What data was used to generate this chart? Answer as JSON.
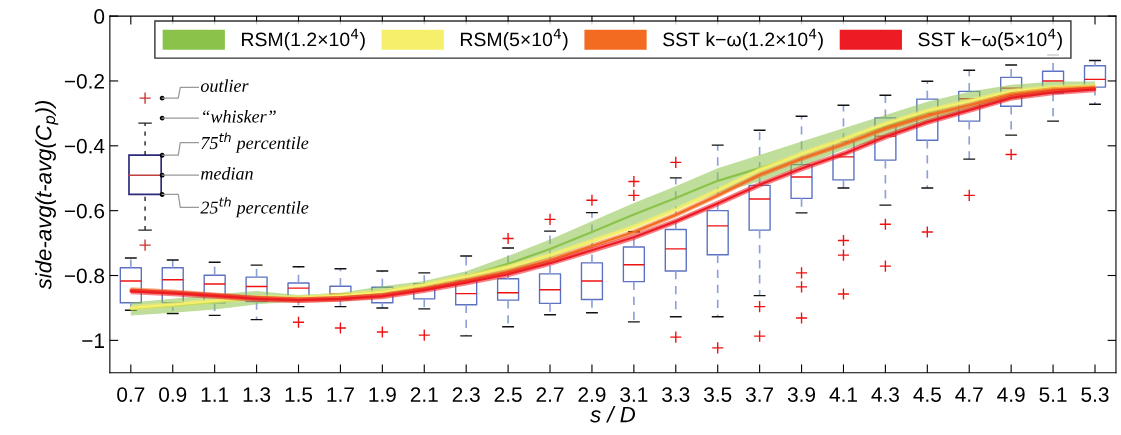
{
  "chart_data": {
    "type": "box",
    "xlabel": "s / D",
    "ylabel": "side-avg(t-avg(C$_{p}$))",
    "categories": [
      "0.7",
      "0.9",
      "1.1",
      "1.3",
      "1.5",
      "1.7",
      "1.9",
      "2.1",
      "2.3",
      "2.5",
      "2.7",
      "2.9",
      "3.1",
      "3.3",
      "3.5",
      "3.7",
      "3.9",
      "4.1",
      "4.3",
      "4.5",
      "4.7",
      "4.9",
      "5.1",
      "5.3"
    ],
    "ylim": [
      -1.1,
      0
    ],
    "yticks": [
      -1,
      -0.8,
      -0.6,
      -0.4,
      -0.2,
      0
    ],
    "grid": false,
    "legend": "top",
    "annotations": [
      "outlier",
      "“whisker”",
      "75$^{th}$ percentile",
      "median",
      "25$^{th}$ percentile"
    ],
    "boxes": [
      {
        "low": -0.907,
        "q1": -0.884,
        "median": -0.817,
        "q3": -0.776,
        "high": -0.746
      },
      {
        "low": -0.917,
        "q1": -0.884,
        "median": -0.813,
        "q3": -0.776,
        "high": -0.752
      },
      {
        "low": -0.923,
        "q1": -0.884,
        "median": -0.826,
        "q3": -0.799,
        "high": -0.759
      },
      {
        "low": -0.936,
        "q1": -0.88,
        "median": -0.834,
        "q3": -0.805,
        "high": -0.768
      },
      {
        "low": -0.896,
        "q1": -0.866,
        "median": -0.839,
        "q3": -0.823,
        "high": -0.773,
        "outliers": [
          -0.944
        ]
      },
      {
        "low": -0.896,
        "q1": -0.874,
        "median": -0.857,
        "q3": -0.833,
        "high": -0.779,
        "outliers": [
          -0.962
        ]
      },
      {
        "low": -0.9,
        "q1": -0.884,
        "median": -0.849,
        "q3": -0.836,
        "high": -0.786,
        "outliers": [
          -0.974
        ]
      },
      {
        "low": -0.903,
        "q1": -0.872,
        "median": -0.841,
        "q3": -0.825,
        "high": -0.792,
        "outliers": [
          -0.984
        ]
      },
      {
        "low": -0.986,
        "q1": -0.89,
        "median": -0.856,
        "q3": -0.815,
        "high": -0.74
      },
      {
        "low": -0.958,
        "q1": -0.876,
        "median": -0.853,
        "q3": -0.81,
        "high": -0.715,
        "outliers": [
          -0.686
        ]
      },
      {
        "low": -0.921,
        "q1": -0.886,
        "median": -0.844,
        "q3": -0.795,
        "high": -0.663,
        "outliers": [
          -0.627
        ]
      },
      {
        "low": -0.915,
        "q1": -0.874,
        "median": -0.817,
        "q3": -0.761,
        "high": -0.606,
        "outliers": [
          -0.568
        ]
      },
      {
        "low": -0.943,
        "q1": -0.819,
        "median": -0.767,
        "q3": -0.712,
        "high": -0.665,
        "outliers": [
          -0.51,
          -0.553
        ]
      },
      {
        "low": -0.927,
        "q1": -0.786,
        "median": -0.718,
        "q3": -0.658,
        "high": -0.499,
        "outliers": [
          -0.451,
          -0.99
        ]
      },
      {
        "low": -0.927,
        "q1": -0.736,
        "median": -0.647,
        "q3": -0.6,
        "high": -0.398,
        "outliers": [
          -1.023
        ]
      },
      {
        "low": -0.862,
        "q1": -0.66,
        "median": -0.564,
        "q3": -0.522,
        "high": -0.352,
        "outliers": [
          -0.896,
          -0.987
        ]
      },
      {
        "low": -0.607,
        "q1": -0.562,
        "median": -0.496,
        "q3": -0.458,
        "high": -0.309,
        "outliers": [
          -0.792,
          -0.835,
          -0.931
        ]
      },
      {
        "low": -0.53,
        "q1": -0.505,
        "median": -0.434,
        "q3": -0.387,
        "high": -0.275,
        "outliers": [
          -0.692,
          -0.737,
          -0.857
        ]
      },
      {
        "low": -0.583,
        "q1": -0.444,
        "median": -0.37,
        "q3": -0.314,
        "high": -0.244,
        "outliers": [
          -0.642,
          -0.771
        ]
      },
      {
        "low": -0.53,
        "q1": -0.383,
        "median": -0.3,
        "q3": -0.256,
        "high": -0.201,
        "outliers": [
          -0.666
        ]
      },
      {
        "low": -0.441,
        "q1": -0.324,
        "median": -0.255,
        "q3": -0.232,
        "high": -0.167,
        "outliers": [
          -0.553
        ]
      },
      {
        "low": -0.367,
        "q1": -0.278,
        "median": -0.222,
        "q3": -0.189,
        "high": -0.151,
        "outliers": [
          -0.427
        ]
      },
      {
        "low": -0.324,
        "q1": -0.237,
        "median": -0.2,
        "q3": -0.17,
        "high": -0.12
      },
      {
        "low": -0.272,
        "q1": -0.219,
        "median": -0.195,
        "q3": -0.153,
        "high": -0.137
      }
    ],
    "series": [
      {
        "name": "RSM(1.2×10$^{4}$)",
        "type": "line",
        "color": "#8bc34a",
        "values": [
          -0.903,
          -0.894,
          -0.882,
          -0.869,
          -0.87,
          -0.864,
          -0.849,
          -0.83,
          -0.802,
          -0.764,
          -0.718,
          -0.666,
          -0.612,
          -0.561,
          -0.508,
          -0.469,
          -0.426,
          -0.379,
          -0.341,
          -0.297,
          -0.261,
          -0.235,
          -0.22,
          -0.215
        ],
        "lower": [
          -0.923,
          -0.915,
          -0.905,
          -0.889,
          -0.88,
          -0.874,
          -0.864,
          -0.843,
          -0.817,
          -0.787,
          -0.746,
          -0.699,
          -0.648,
          -0.597,
          -0.546,
          -0.51,
          -0.464,
          -0.412,
          -0.376,
          -0.33,
          -0.289,
          -0.258,
          -0.238,
          -0.228
        ],
        "upper": [
          -0.883,
          -0.872,
          -0.858,
          -0.848,
          -0.86,
          -0.853,
          -0.833,
          -0.817,
          -0.787,
          -0.74,
          -0.689,
          -0.633,
          -0.576,
          -0.525,
          -0.469,
          -0.428,
          -0.387,
          -0.346,
          -0.305,
          -0.264,
          -0.233,
          -0.212,
          -0.202,
          -0.202
        ]
      },
      {
        "name": "RSM(5×10$^{4}$)",
        "type": "line",
        "color": "#f5ef6b",
        "values": [
          -0.9,
          -0.89,
          -0.878,
          -0.868,
          -0.868,
          -0.862,
          -0.85,
          -0.829,
          -0.803,
          -0.774,
          -0.737,
          -0.694,
          -0.65,
          -0.597,
          -0.537,
          -0.474,
          -0.425,
          -0.38,
          -0.332,
          -0.292,
          -0.262,
          -0.232,
          -0.22,
          -0.216
        ],
        "lower": [
          -0.908,
          -0.898,
          -0.886,
          -0.876,
          -0.876,
          -0.87,
          -0.858,
          -0.837,
          -0.811,
          -0.782,
          -0.745,
          -0.702,
          -0.658,
          -0.605,
          -0.545,
          -0.482,
          -0.433,
          -0.388,
          -0.34,
          -0.3,
          -0.27,
          -0.24,
          -0.228,
          -0.224
        ],
        "upper": [
          -0.892,
          -0.882,
          -0.87,
          -0.86,
          -0.86,
          -0.854,
          -0.842,
          -0.821,
          -0.795,
          -0.766,
          -0.729,
          -0.686,
          -0.642,
          -0.589,
          -0.529,
          -0.466,
          -0.417,
          -0.372,
          -0.324,
          -0.284,
          -0.254,
          -0.224,
          -0.212,
          -0.208
        ]
      },
      {
        "name": "SST k−ω(1.2×10$^{4}$)",
        "type": "line",
        "color": "#f26b21",
        "values": [
          -0.844,
          -0.851,
          -0.86,
          -0.87,
          -0.876,
          -0.872,
          -0.862,
          -0.841,
          -0.816,
          -0.788,
          -0.752,
          -0.709,
          -0.666,
          -0.613,
          -0.553,
          -0.49,
          -0.44,
          -0.395,
          -0.347,
          -0.307,
          -0.275,
          -0.242,
          -0.227,
          -0.221
        ],
        "lower": [
          -0.852,
          -0.859,
          -0.868,
          -0.878,
          -0.884,
          -0.88,
          -0.87,
          -0.849,
          -0.824,
          -0.796,
          -0.76,
          -0.717,
          -0.674,
          -0.621,
          -0.561,
          -0.498,
          -0.448,
          -0.403,
          -0.355,
          -0.315,
          -0.283,
          -0.25,
          -0.235,
          -0.229
        ],
        "upper": [
          -0.836,
          -0.843,
          -0.852,
          -0.862,
          -0.868,
          -0.864,
          -0.854,
          -0.833,
          -0.808,
          -0.78,
          -0.744,
          -0.701,
          -0.658,
          -0.605,
          -0.545,
          -0.482,
          -0.432,
          -0.387,
          -0.339,
          -0.299,
          -0.267,
          -0.234,
          -0.219,
          -0.213
        ]
      },
      {
        "name": "SST k−ω(5×10$^{4}$)",
        "type": "line",
        "color": "#ed1c24",
        "values": [
          -0.849,
          -0.855,
          -0.863,
          -0.872,
          -0.876,
          -0.872,
          -0.864,
          -0.845,
          -0.822,
          -0.796,
          -0.762,
          -0.722,
          -0.682,
          -0.633,
          -0.578,
          -0.52,
          -0.47,
          -0.425,
          -0.372,
          -0.327,
          -0.29,
          -0.252,
          -0.235,
          -0.226
        ],
        "lower": [
          -0.858,
          -0.864,
          -0.872,
          -0.881,
          -0.885,
          -0.881,
          -0.873,
          -0.854,
          -0.831,
          -0.805,
          -0.771,
          -0.731,
          -0.691,
          -0.642,
          -0.587,
          -0.529,
          -0.479,
          -0.434,
          -0.381,
          -0.336,
          -0.299,
          -0.261,
          -0.244,
          -0.235
        ],
        "upper": [
          -0.84,
          -0.846,
          -0.854,
          -0.863,
          -0.867,
          -0.863,
          -0.855,
          -0.836,
          -0.813,
          -0.787,
          -0.753,
          -0.713,
          -0.673,
          -0.624,
          -0.569,
          -0.511,
          -0.461,
          -0.416,
          -0.363,
          -0.318,
          -0.281,
          -0.243,
          -0.226,
          -0.217
        ]
      }
    ]
  }
}
